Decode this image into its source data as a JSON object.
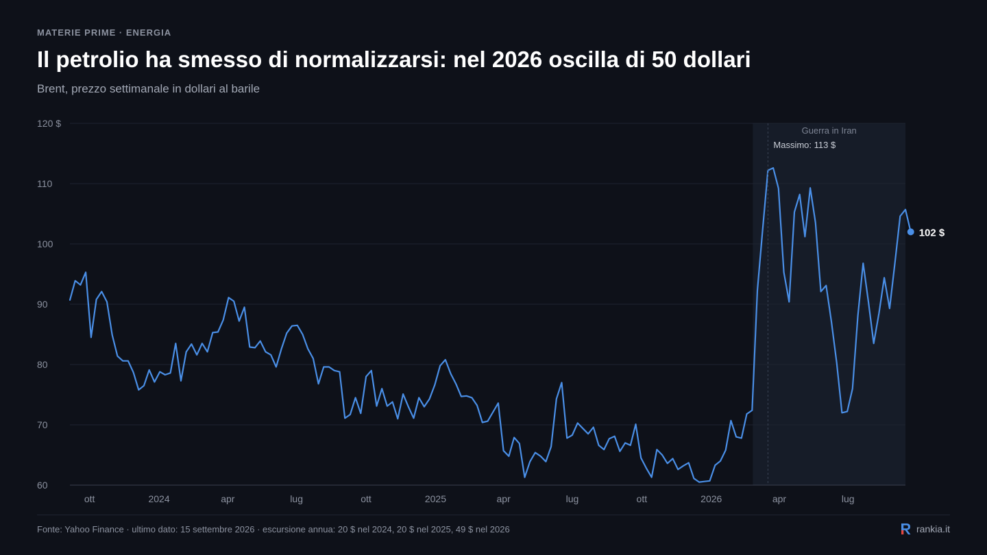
{
  "header": {
    "kicker": "MATERIE PRIME · ENERGIA",
    "title": "Il petrolio ha smesso di normalizzarsi: nel 2026 oscilla di 50 dollari",
    "subtitle": "Brent, prezzo settimanale in dollari al barile"
  },
  "footer": {
    "source": "Fonte: Yahoo Finance · ultimo dato: 15 settembre 2026 · escursione annua: 20 $ nel 2024, 20 $ nel 2025, 49 $ nel 2026",
    "brand": "rankia.it"
  },
  "colors": {
    "background": "#0e1119",
    "line": "#4a8fe7",
    "grid": "#1f2431",
    "shade": "#161c28",
    "axis_text": "#8c92a0"
  },
  "chart_data": {
    "type": "line",
    "title": "Il petrolio ha smesso di normalizzarsi: nel 2026 oscilla di 50 dollari",
    "subtitle": "Brent, prezzo settimanale in dollari al barile",
    "xlabel": "",
    "ylabel": "",
    "ylim": [
      60,
      120
    ],
    "xlim": [
      "2023-09-05",
      "2026-09-15"
    ],
    "y_ticks": [
      {
        "value": 60,
        "label": "60"
      },
      {
        "value": 70,
        "label": "70"
      },
      {
        "value": 80,
        "label": "80"
      },
      {
        "value": 90,
        "label": "90"
      },
      {
        "value": 100,
        "label": "100"
      },
      {
        "value": 110,
        "label": "110"
      },
      {
        "value": 120,
        "label": "120 $"
      }
    ],
    "x_ticks": [
      {
        "date": "2023-10-01",
        "label": "ott"
      },
      {
        "date": "2024-01-01",
        "label": "2024"
      },
      {
        "date": "2024-04-01",
        "label": "apr"
      },
      {
        "date": "2024-07-01",
        "label": "lug"
      },
      {
        "date": "2024-10-01",
        "label": "ott"
      },
      {
        "date": "2025-01-01",
        "label": "2025"
      },
      {
        "date": "2025-04-01",
        "label": "apr"
      },
      {
        "date": "2025-07-01",
        "label": "lug"
      },
      {
        "date": "2025-10-01",
        "label": "ott"
      },
      {
        "date": "2026-01-01",
        "label": "2026"
      },
      {
        "date": "2026-04-01",
        "label": "apr"
      },
      {
        "date": "2026-07-01",
        "label": "lug"
      }
    ],
    "grid": true,
    "legend": "none",
    "shaded_region": {
      "start": "2026-02-25",
      "end": "2026-09-15",
      "label": "Guerra in Iran"
    },
    "peak": {
      "date": "2026-03-17",
      "value": 113,
      "label": "Massimo: 113 $"
    },
    "end_label": "102 $",
    "series": [
      {
        "start_date": "2023-09-05",
        "interval_days": 7,
        "values": [
          90.7,
          93.9,
          93.2,
          95.3,
          84.5,
          90.8,
          92.1,
          90.4,
          84.9,
          81.4,
          80.6,
          80.6,
          78.7,
          75.8,
          76.5,
          79.1,
          77.1,
          78.8,
          78.3,
          78.6,
          83.5,
          77.3,
          82.1,
          83.4,
          81.6,
          83.5,
          82.1,
          85.3,
          85.4,
          87.4,
          91.1,
          90.5,
          87.2,
          89.5,
          82.9,
          82.8,
          83.9,
          82.1,
          81.6,
          79.6,
          82.6,
          85.2,
          86.4,
          86.5,
          85.0,
          82.6,
          81.0,
          76.8,
          79.6,
          79.6,
          79.0,
          78.8,
          71.1,
          71.7,
          74.5,
          71.9,
          78.0,
          79.0,
          73.1,
          76.0,
          73.1,
          73.8,
          71.0,
          75.1,
          73.0,
          71.1,
          74.5,
          73.0,
          74.3,
          76.6,
          79.8,
          80.8,
          78.5,
          76.8,
          74.7,
          74.8,
          74.5,
          73.2,
          70.4,
          70.6,
          72.1,
          73.6,
          65.7,
          64.8,
          67.9,
          66.9,
          61.3,
          63.9,
          65.4,
          64.8,
          63.9,
          66.4,
          74.3,
          77.0,
          67.8,
          68.3,
          70.3,
          69.4,
          68.5,
          69.6,
          66.6,
          65.9,
          67.7,
          68.1,
          65.6,
          67.0,
          66.6,
          70.1,
          64.5,
          62.8,
          61.3,
          65.9,
          65.0,
          63.6,
          64.4,
          62.6,
          63.2,
          63.7,
          61.1,
          60.5,
          60.6,
          60.7,
          63.3,
          64.0,
          65.8,
          70.7,
          68.0,
          67.8,
          71.8,
          72.4,
          92.3,
          102.4,
          112.2,
          112.6,
          109.2,
          95.3,
          90.4,
          105.3,
          108.2,
          101.2,
          109.3,
          103.5,
          92.1,
          93.1,
          87.1,
          80.3,
          72.0,
          72.2,
          76.0,
          88.1,
          96.8,
          90.4,
          83.5,
          88.5,
          94.4,
          89.3,
          96.8,
          104.6,
          105.7,
          102.0
        ]
      }
    ]
  }
}
